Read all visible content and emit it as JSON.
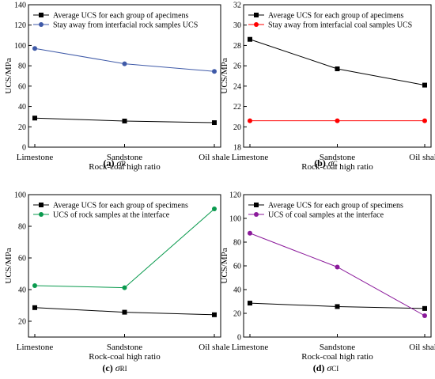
{
  "figure": {
    "panels": [
      {
        "caption_letter": "(a)",
        "caption_symbol": "σ",
        "caption_subscript": "R"
      },
      {
        "caption_letter": "(b)",
        "caption_symbol": "σ",
        "caption_subscript": "C"
      },
      {
        "caption_letter": "(c)",
        "caption_symbol": "σ",
        "caption_subscript": "RI"
      },
      {
        "caption_letter": "(d)",
        "caption_symbol": "σ",
        "caption_subscript": "CI"
      }
    ]
  },
  "chart_data": [
    {
      "type": "line",
      "title": "",
      "xlabel": "Rock-coal high ratio",
      "ylabel": "UCS/MPa",
      "categories": [
        "Limestone",
        "Sandstone",
        "Oil shale"
      ],
      "ylim": [
        0,
        140
      ],
      "yticks": [
        0,
        20,
        40,
        60,
        80,
        100,
        120,
        140
      ],
      "grid": false,
      "legend_position": "top-left",
      "series": [
        {
          "name": "Average UCS for each group of apecimens",
          "values": [
            28.6,
            25.7,
            24.1
          ],
          "color": "#000000",
          "marker": "square"
        },
        {
          "name": "Stay away from interfacial rock samples UCS",
          "values": [
            97.0,
            82.0,
            74.5
          ],
          "color": "#3f5aa8",
          "marker": "circle"
        }
      ]
    },
    {
      "type": "line",
      "title": "",
      "xlabel": "Rock-coal high ratio",
      "ylabel": "UCS/MPa",
      "categories": [
        "Limestone",
        "Sandstone",
        "Oil shale"
      ],
      "ylim": [
        18,
        32
      ],
      "yticks": [
        18,
        20,
        22,
        24,
        26,
        28,
        30,
        32
      ],
      "grid": false,
      "legend_position": "top-left",
      "series": [
        {
          "name": "Average UCS for each group of apecimens",
          "values": [
            28.6,
            25.7,
            24.1
          ],
          "color": "#000000",
          "marker": "square"
        },
        {
          "name": "Stay away from interfacial coal samples UCS",
          "values": [
            20.6,
            20.6,
            20.6
          ],
          "color": "#ff0000",
          "marker": "circle"
        }
      ]
    },
    {
      "type": "line",
      "title": "",
      "xlabel": "Rock-coal high ratio",
      "ylabel": "UCS/MPa",
      "categories": [
        "Limestone",
        "Sandstone",
        "Oil shale"
      ],
      "ylim": [
        10,
        100
      ],
      "yticks": [
        20,
        40,
        60,
        80,
        100
      ],
      "grid": false,
      "legend_position": "top-left",
      "series": [
        {
          "name": "Average UCS for each group of specimens",
          "values": [
            28.6,
            25.7,
            24.1
          ],
          "color": "#000000",
          "marker": "square"
        },
        {
          "name": "UCS of rock samples at the interface",
          "values": [
            42.5,
            41.2,
            91.0
          ],
          "color": "#0a9a4e",
          "marker": "circle"
        }
      ]
    },
    {
      "type": "line",
      "title": "",
      "xlabel": "Rock-coal high ratio",
      "ylabel": "UCS/MPa",
      "categories": [
        "Limestone",
        "Sandstone",
        "Oil shale"
      ],
      "ylim": [
        0,
        120
      ],
      "yticks": [
        0,
        20,
        40,
        60,
        80,
        100,
        120
      ],
      "grid": false,
      "legend_position": "top-left",
      "series": [
        {
          "name": "Average UCS for each group of specimens",
          "values": [
            28.6,
            25.7,
            24.1
          ],
          "color": "#000000",
          "marker": "square"
        },
        {
          "name": "UCS of coal samples at the interface",
          "values": [
            87.5,
            59.0,
            18.0
          ],
          "color": "#8b1a9b",
          "marker": "circle"
        }
      ]
    }
  ]
}
